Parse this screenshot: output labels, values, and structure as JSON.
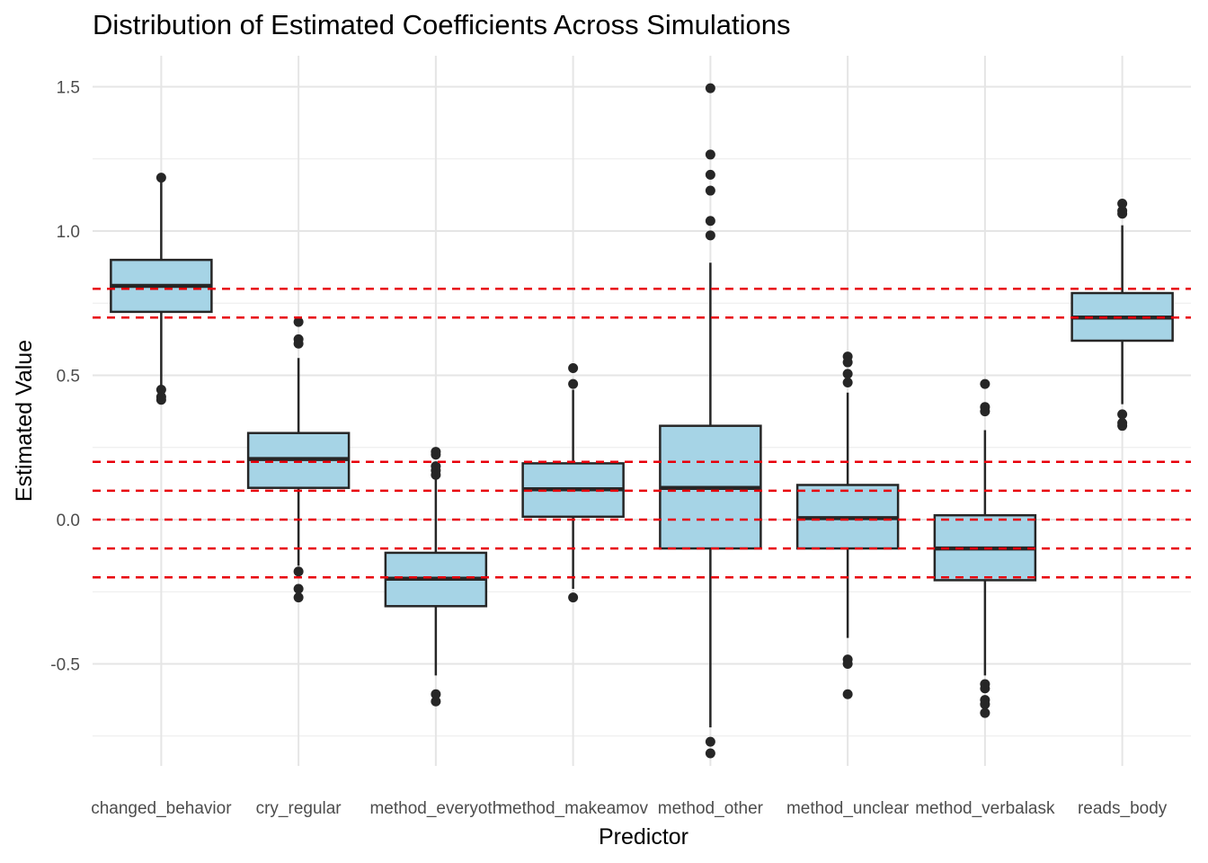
{
  "chart_data": {
    "type": "boxplot",
    "title": "Distribution of Estimated Coefficients Across Simulations",
    "xlabel": "Predictor",
    "ylabel": "Estimated Value",
    "ylim": [
      -0.92,
      1.62
    ],
    "yticks": [
      -0.5,
      0.0,
      0.5,
      1.0,
      1.5
    ],
    "ytick_labels": [
      "-0.5",
      "0.0",
      "0.5",
      "1.0",
      "1.5"
    ],
    "grid": true,
    "box_fill": "#a6d4e6",
    "box_stroke": "#262626",
    "reference_line_color": "#e8000b",
    "reference_lines": [
      0.8,
      0.7,
      0.2,
      0.1,
      0.0,
      -0.1,
      -0.2
    ],
    "categories": [
      "changed_behavior",
      "cry_regular",
      "method_everyoth",
      "method_makeamov",
      "method_other",
      "method_unclear",
      "method_verbalask",
      "reads_body"
    ],
    "boxes": [
      {
        "q1": 0.72,
        "median": 0.81,
        "q3": 0.9,
        "whisker_low": 0.46,
        "whisker_high": 1.18,
        "outliers": [
          1.185,
          0.45,
          0.425,
          0.415
        ]
      },
      {
        "q1": 0.11,
        "median": 0.21,
        "q3": 0.3,
        "whisker_low": -0.16,
        "whisker_high": 0.56,
        "outliers": [
          0.685,
          0.625,
          0.61,
          -0.18,
          -0.24,
          -0.27
        ]
      },
      {
        "q1": -0.3,
        "median": -0.205,
        "q3": -0.115,
        "whisker_low": -0.54,
        "whisker_high": 0.14,
        "outliers": [
          0.235,
          0.225,
          0.185,
          0.17,
          0.155,
          -0.605,
          -0.63
        ]
      },
      {
        "q1": 0.01,
        "median": 0.105,
        "q3": 0.195,
        "whisker_low": -0.24,
        "whisker_high": 0.45,
        "outliers": [
          0.525,
          0.47,
          -0.27
        ]
      },
      {
        "q1": -0.1,
        "median": 0.11,
        "q3": 0.325,
        "whisker_low": -0.72,
        "whisker_high": 0.89,
        "outliers": [
          1.495,
          1.265,
          1.195,
          1.14,
          1.035,
          0.985,
          -0.77,
          -0.81
        ]
      },
      {
        "q1": -0.1,
        "median": 0.005,
        "q3": 0.12,
        "whisker_low": -0.41,
        "whisker_high": 0.44,
        "outliers": [
          0.565,
          0.545,
          0.505,
          0.475,
          -0.485,
          -0.5,
          -0.605
        ]
      },
      {
        "q1": -0.21,
        "median": -0.1,
        "q3": 0.015,
        "whisker_low": -0.54,
        "whisker_high": 0.31,
        "outliers": [
          0.47,
          0.39,
          0.375,
          -0.57,
          -0.585,
          -0.625,
          -0.64,
          -0.67
        ]
      },
      {
        "q1": 0.62,
        "median": 0.7,
        "q3": 0.785,
        "whisker_low": 0.4,
        "whisker_high": 1.02,
        "outliers": [
          1.095,
          1.07,
          1.06,
          0.365,
          0.335,
          0.325
        ]
      }
    ]
  }
}
